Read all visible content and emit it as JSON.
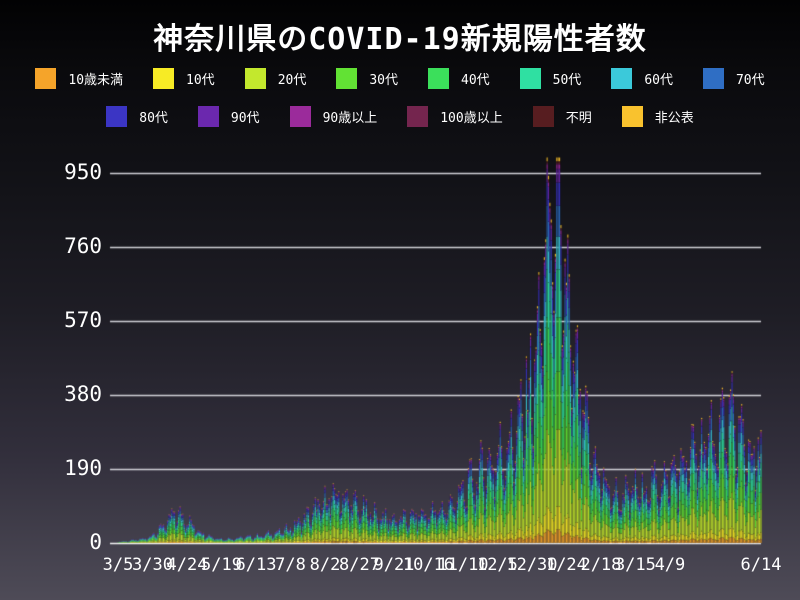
{
  "chart_data": {
    "type": "bar",
    "stacked": true,
    "title": "神奈川県のCOVID-19新規陽性者数",
    "xlabel": "",
    "ylabel": "",
    "grid": true,
    "legend_position": "top",
    "y_ticks": [
      0,
      190,
      380,
      570,
      760,
      950
    ],
    "ylim": [
      0,
      1010
    ],
    "total_days": 467,
    "x_tick_labels": [
      "3/5",
      "3/30",
      "4/24",
      "5/19",
      "6/13",
      "7/8",
      "8/2",
      "8/27",
      "9/21",
      "10/16",
      "11/10",
      "12/5",
      "12/30",
      "1/24",
      "2/18",
      "3/15",
      "4/9",
      "6/14"
    ],
    "x_tick_days": [
      0,
      25,
      50,
      75,
      100,
      125,
      150,
      175,
      200,
      225,
      250,
      275,
      300,
      325,
      350,
      375,
      400,
      466
    ],
    "groups": [
      {
        "label": "10歳未満",
        "color": "#F5A42A",
        "share": 0.035
      },
      {
        "label": "10代",
        "color": "#F7EB25",
        "share": 0.06
      },
      {
        "label": "20代",
        "color": "#C3E82D",
        "share": 0.2
      },
      {
        "label": "30代",
        "color": "#62E234",
        "share": 0.15
      },
      {
        "label": "40代",
        "color": "#3BDF5B",
        "share": 0.14
      },
      {
        "label": "50代",
        "color": "#2FE0A2",
        "share": 0.125
      },
      {
        "label": "60代",
        "color": "#3BC9DA",
        "share": 0.085
      },
      {
        "label": "70代",
        "color": "#2F6EC4",
        "share": 0.08
      },
      {
        "label": "80代",
        "color": "#3B35C4",
        "share": 0.06
      },
      {
        "label": "90代",
        "color": "#6B28AE",
        "share": 0.035
      },
      {
        "label": "90歳以上",
        "color": "#9B2B9B",
        "share": 0.012
      },
      {
        "label": "100歳以上",
        "color": "#74254E",
        "share": 0.003
      },
      {
        "label": "不明",
        "color": "#571D20",
        "share": 0.005
      },
      {
        "label": "非公表",
        "color": "#F9C22E",
        "share": 0.01
      }
    ],
    "legend_rows": [
      [
        0,
        1,
        2,
        3,
        4,
        5,
        6,
        7
      ],
      [
        8,
        9,
        10,
        11,
        12,
        13
      ]
    ],
    "daily_total_samples": [
      [
        0,
        3
      ],
      [
        7,
        5
      ],
      [
        14,
        8
      ],
      [
        21,
        12
      ],
      [
        28,
        28
      ],
      [
        35,
        50
      ],
      [
        42,
        75
      ],
      [
        49,
        62
      ],
      [
        56,
        38
      ],
      [
        63,
        22
      ],
      [
        70,
        14
      ],
      [
        77,
        10
      ],
      [
        84,
        12
      ],
      [
        91,
        14
      ],
      [
        98,
        16
      ],
      [
        105,
        20
      ],
      [
        112,
        24
      ],
      [
        119,
        30
      ],
      [
        126,
        40
      ],
      [
        133,
        55
      ],
      [
        140,
        75
      ],
      [
        147,
        95
      ],
      [
        154,
        115
      ],
      [
        161,
        120
      ],
      [
        168,
        105
      ],
      [
        175,
        88
      ],
      [
        182,
        78
      ],
      [
        189,
        68
      ],
      [
        196,
        62
      ],
      [
        203,
        58
      ],
      [
        210,
        62
      ],
      [
        217,
        68
      ],
      [
        224,
        72
      ],
      [
        231,
        78
      ],
      [
        238,
        88
      ],
      [
        245,
        105
      ],
      [
        252,
        135
      ],
      [
        259,
        165
      ],
      [
        266,
        185
      ],
      [
        273,
        205
      ],
      [
        280,
        235
      ],
      [
        287,
        265
      ],
      [
        294,
        330
      ],
      [
        301,
        430
      ],
      [
        305,
        520
      ],
      [
        308,
        640
      ],
      [
        311,
        790
      ],
      [
        315,
        860
      ],
      [
        318,
        820
      ],
      [
        322,
        700
      ],
      [
        326,
        590
      ],
      [
        329,
        470
      ],
      [
        333,
        390
      ],
      [
        336,
        330
      ],
      [
        343,
        230
      ],
      [
        350,
        170
      ],
      [
        357,
        125
      ],
      [
        364,
        115
      ],
      [
        371,
        125
      ],
      [
        378,
        135
      ],
      [
        385,
        145
      ],
      [
        392,
        155
      ],
      [
        399,
        165
      ],
      [
        406,
        185
      ],
      [
        413,
        205
      ],
      [
        420,
        235
      ],
      [
        427,
        255
      ],
      [
        434,
        285
      ],
      [
        441,
        305
      ],
      [
        448,
        285
      ],
      [
        455,
        245
      ],
      [
        462,
        215
      ],
      [
        466,
        200
      ]
    ],
    "weekday_pattern": [
      0.62,
      0.85,
      1.05,
      1.15,
      1.18,
      1.1,
      0.9
    ],
    "max_clamp": 990
  },
  "colors": {
    "grid_line": "#d0d0d6",
    "baseline": "#f2f2f4",
    "text": "#ffffff"
  }
}
